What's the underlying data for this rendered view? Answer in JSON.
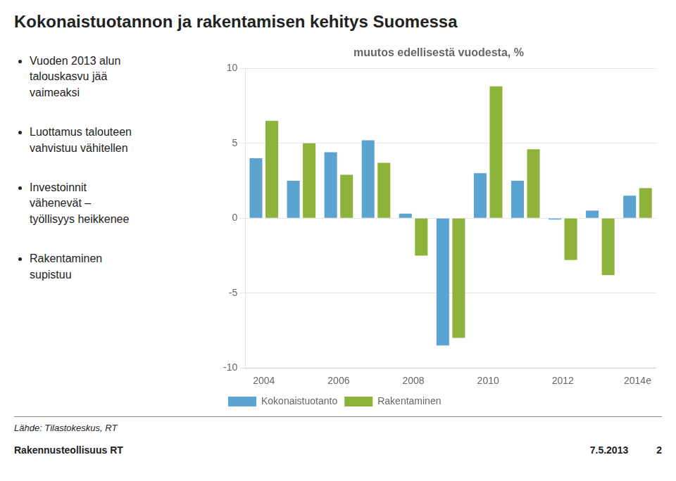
{
  "chart_data": {
    "type": "bar",
    "title": "Kokonaistuotannon ja rakentamisen kehitys Suomessa",
    "subtitle": "muutos edellisestä vuodesta, %",
    "categories": [
      "2004",
      null,
      "2006",
      null,
      "2008",
      null,
      "2010",
      null,
      "2012",
      null,
      "2014e"
    ],
    "series": [
      {
        "name": "Kokonaistuotanto",
        "color": "#5BA3D0",
        "values": [
          4.0,
          2.5,
          4.4,
          5.2,
          0.3,
          -8.5,
          3.0,
          2.5,
          -0.1,
          0.5,
          1.5
        ]
      },
      {
        "name": "Rakentaminen",
        "color": "#8DB33A",
        "values": [
          6.5,
          5.0,
          2.9,
          3.7,
          -2.5,
          -8.0,
          8.8,
          4.6,
          -2.8,
          -3.8,
          2.0
        ]
      }
    ],
    "ylim": [
      -10,
      10
    ],
    "yticks": [
      -10,
      -5,
      0,
      5,
      10
    ],
    "grid": true,
    "legend": "lower left",
    "annotations": [
      "Vuoden 2013 alun\ntalouskasvu jää\nvaimeaksi",
      "Luottamus talouteen\nvahvistuu vähitellen",
      "Investoinnit\nvähenevät – \ntyöllisyys heikkenee",
      "Rakentaminen\nsupistuu"
    ],
    "footer": [
      "Lähde: Tilastokeskus, RT",
      "Rakennusteollisuus RT",
      "7.5.2013",
      "2"
    ]
  }
}
